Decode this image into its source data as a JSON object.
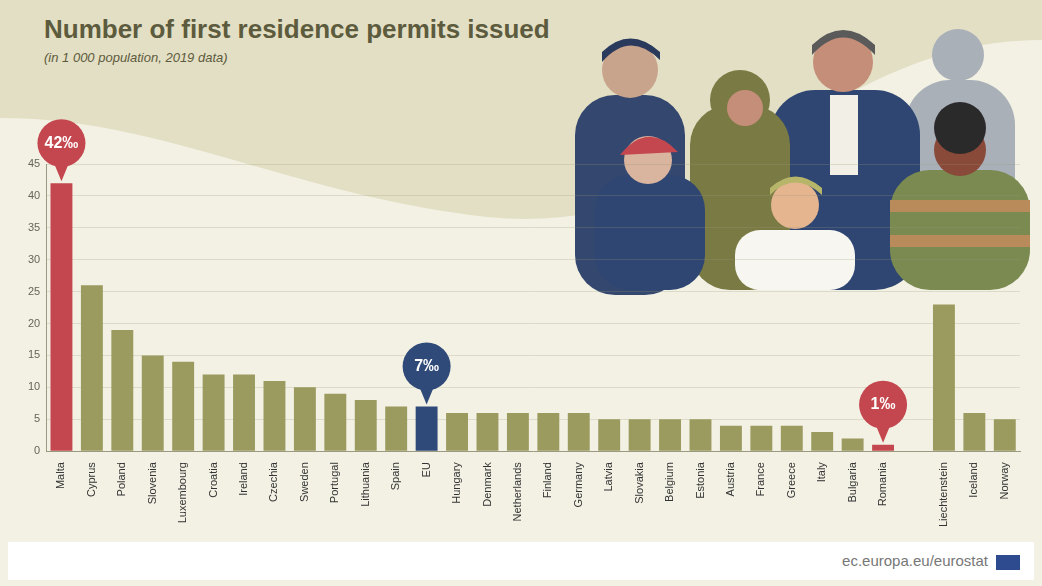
{
  "chart_data": {
    "type": "bar",
    "title": "Number of first residence permits issued",
    "subtitle": "(in 1 000 population, 2019 data)",
    "source": "ec.europa.eu/eurostat",
    "categories": [
      "Malta",
      "Cyprus",
      "Poland",
      "Slovenia",
      "Luxembourg",
      "Croatia",
      "Ireland",
      "Czechia",
      "Sweden",
      "Portugal",
      "Lithuania",
      "Spain",
      "EU",
      "Hungary",
      "Denmark",
      "Netherlands",
      "Finland",
      "Germany",
      "Latvia",
      "Slovakia",
      "Belgium",
      "Estonia",
      "Austria",
      "France",
      "Greece",
      "Italy",
      "Bulgaria",
      "Romania",
      null,
      "Liechtenstein",
      "Iceland",
      "Norway"
    ],
    "values": [
      42,
      26,
      19,
      15,
      14,
      12,
      12,
      11,
      10,
      9,
      8,
      7,
      7,
      6,
      6,
      6,
      6,
      6,
      5,
      5,
      5,
      5,
      4,
      4,
      4,
      3,
      2,
      1,
      null,
      23,
      6,
      5
    ],
    "colors": [
      "#c4474f",
      "#9b9a5f",
      "#9b9a5f",
      "#9b9a5f",
      "#9b9a5f",
      "#9b9a5f",
      "#9b9a5f",
      "#9b9a5f",
      "#9b9a5f",
      "#9b9a5f",
      "#9b9a5f",
      "#9b9a5f",
      "#2f4a78",
      "#9b9a5f",
      "#9b9a5f",
      "#9b9a5f",
      "#9b9a5f",
      "#9b9a5f",
      "#9b9a5f",
      "#9b9a5f",
      "#9b9a5f",
      "#9b9a5f",
      "#9b9a5f",
      "#9b9a5f",
      "#9b9a5f",
      "#9b9a5f",
      "#9b9a5f",
      "#c4474f",
      "#9b9a5f",
      "#9b9a5f",
      "#9b9a5f",
      "#9b9a5f"
    ],
    "ylim": [
      0,
      45
    ],
    "yticks": [
      0,
      5,
      10,
      15,
      20,
      25,
      30,
      35,
      40,
      45
    ],
    "grid": true,
    "annotations": [
      {
        "category": "Malta",
        "label": "42‰"
      },
      {
        "category": "EU",
        "label": "7‰"
      },
      {
        "category": "Romania",
        "label": "1‰"
      }
    ]
  }
}
